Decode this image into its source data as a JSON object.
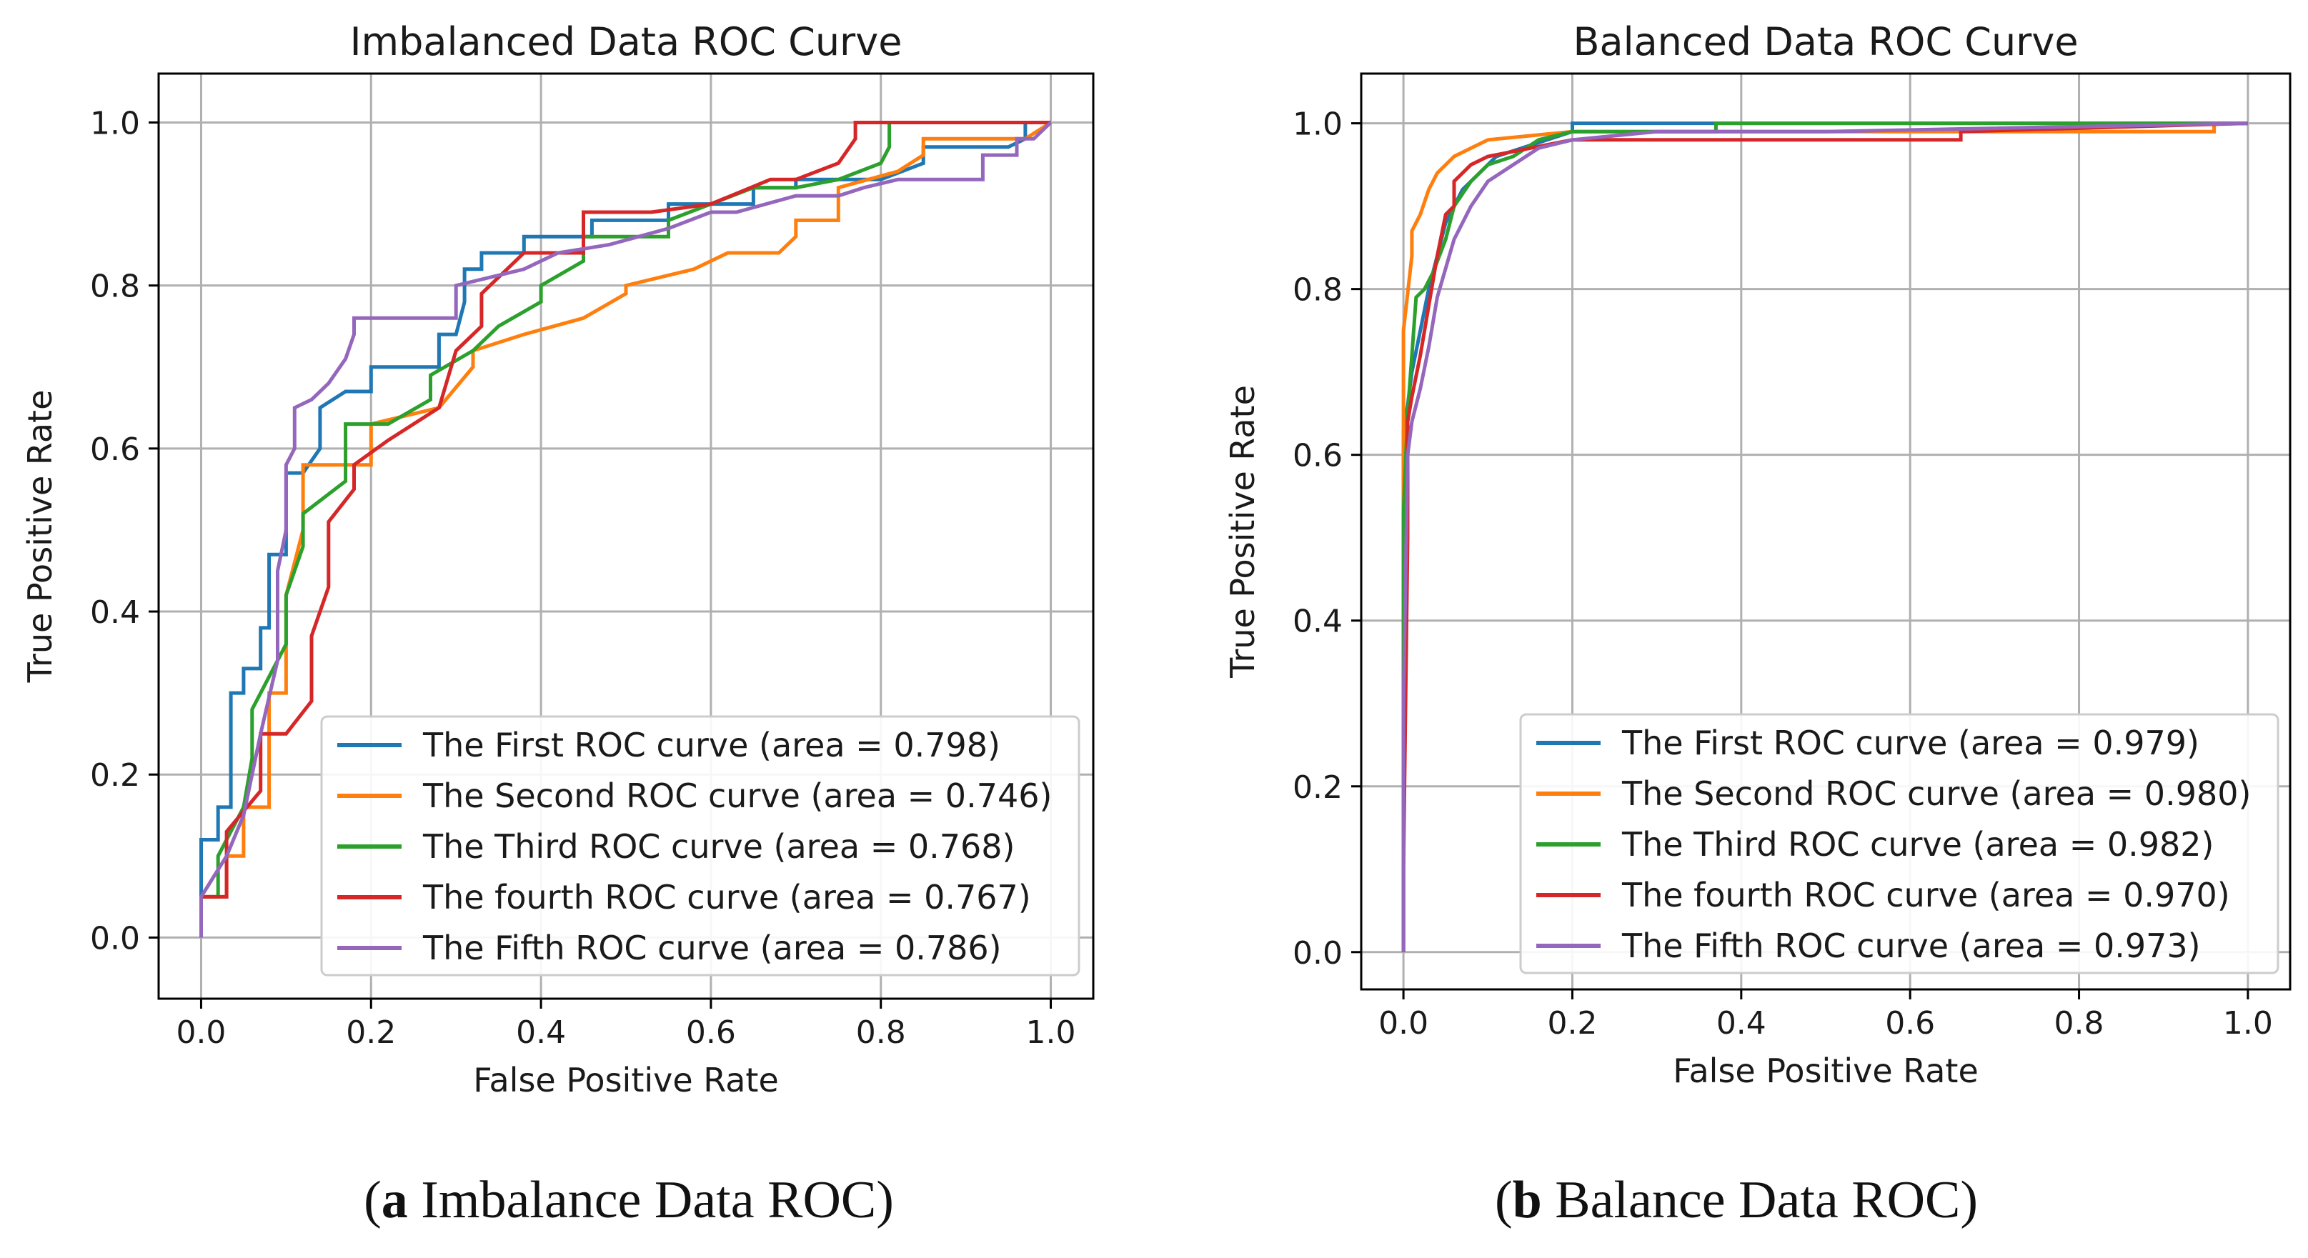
{
  "colors": {
    "series": [
      "#1f77b4",
      "#ff7f0e",
      "#2ca02c",
      "#d62728",
      "#9467bd"
    ],
    "grid": "#b0b0b0",
    "axis": "#000000"
  },
  "captions": [
    {
      "tag": "a",
      "text": " Imbalance Data ROC"
    },
    {
      "tag": "b",
      "text": " Balance Data ROC"
    }
  ],
  "chart_data": [
    {
      "type": "line",
      "title": "Imbalanced Data ROC Curve",
      "xlabel": "False Positive Rate",
      "ylabel": "True Positive Rate",
      "xlim": [
        -0.05,
        1.05
      ],
      "ylim": [
        -0.075,
        1.06
      ],
      "xticks": [
        "0.0",
        "0.2",
        "0.4",
        "0.6",
        "0.8",
        "1.0"
      ],
      "yticks": [
        "0.0",
        "0.2",
        "0.4",
        "0.6",
        "0.8",
        "1.0"
      ],
      "grid": true,
      "legend_position": "lower-right",
      "series": [
        {
          "name": "The First ROC curve (area = 0.798)",
          "x": [
            0.0,
            0.0,
            0.02,
            0.02,
            0.035,
            0.035,
            0.05,
            0.05,
            0.07,
            0.07,
            0.08,
            0.08,
            0.1,
            0.1,
            0.12,
            0.14,
            0.14,
            0.17,
            0.2,
            0.2,
            0.28,
            0.28,
            0.3,
            0.31,
            0.31,
            0.33,
            0.33,
            0.38,
            0.38,
            0.45,
            0.46,
            0.46,
            0.55,
            0.55,
            0.65,
            0.65,
            0.7,
            0.7,
            0.8,
            0.85,
            0.85,
            0.95,
            0.97,
            0.97,
            1.0
          ],
          "y": [
            0.0,
            0.12,
            0.12,
            0.16,
            0.16,
            0.3,
            0.3,
            0.33,
            0.33,
            0.38,
            0.38,
            0.47,
            0.47,
            0.57,
            0.57,
            0.6,
            0.65,
            0.67,
            0.67,
            0.7,
            0.7,
            0.74,
            0.74,
            0.78,
            0.82,
            0.82,
            0.84,
            0.84,
            0.86,
            0.86,
            0.86,
            0.88,
            0.88,
            0.9,
            0.9,
            0.92,
            0.92,
            0.93,
            0.93,
            0.95,
            0.97,
            0.97,
            0.98,
            1.0,
            1.0
          ]
        },
        {
          "name": "The Second ROC curve (area = 0.746)",
          "x": [
            0.0,
            0.0,
            0.03,
            0.03,
            0.05,
            0.05,
            0.08,
            0.08,
            0.1,
            0.1,
            0.12,
            0.12,
            0.2,
            0.2,
            0.28,
            0.32,
            0.32,
            0.38,
            0.45,
            0.5,
            0.5,
            0.58,
            0.62,
            0.68,
            0.7,
            0.7,
            0.75,
            0.75,
            0.82,
            0.85,
            0.85,
            0.88,
            0.88,
            0.97,
            1.0
          ],
          "y": [
            0.0,
            0.05,
            0.05,
            0.1,
            0.1,
            0.16,
            0.16,
            0.3,
            0.3,
            0.42,
            0.5,
            0.58,
            0.58,
            0.63,
            0.65,
            0.7,
            0.72,
            0.74,
            0.76,
            0.79,
            0.8,
            0.82,
            0.84,
            0.84,
            0.86,
            0.88,
            0.88,
            0.92,
            0.94,
            0.96,
            0.98,
            0.98,
            0.98,
            0.98,
            1.0
          ]
        },
        {
          "name": "The Third ROC curve (area = 0.768)",
          "x": [
            0.0,
            0.0,
            0.02,
            0.02,
            0.05,
            0.06,
            0.06,
            0.08,
            0.1,
            0.1,
            0.12,
            0.12,
            0.17,
            0.17,
            0.22,
            0.27,
            0.27,
            0.32,
            0.35,
            0.4,
            0.4,
            0.45,
            0.45,
            0.55,
            0.55,
            0.6,
            0.65,
            0.7,
            0.75,
            0.8,
            0.81,
            0.81,
            0.85,
            0.85,
            0.97,
            1.0
          ],
          "y": [
            0.0,
            0.05,
            0.05,
            0.1,
            0.16,
            0.22,
            0.28,
            0.32,
            0.36,
            0.42,
            0.48,
            0.52,
            0.56,
            0.63,
            0.63,
            0.66,
            0.69,
            0.72,
            0.75,
            0.78,
            0.8,
            0.83,
            0.86,
            0.86,
            0.88,
            0.9,
            0.92,
            0.92,
            0.93,
            0.95,
            0.97,
            1.0,
            1.0,
            1.0,
            1.0,
            1.0
          ]
        },
        {
          "name": "The fourth ROC curve (area = 0.767)",
          "x": [
            0.0,
            0.0,
            0.03,
            0.03,
            0.07,
            0.07,
            0.1,
            0.13,
            0.13,
            0.15,
            0.15,
            0.18,
            0.18,
            0.22,
            0.25,
            0.28,
            0.3,
            0.33,
            0.33,
            0.38,
            0.45,
            0.45,
            0.53,
            0.6,
            0.67,
            0.7,
            0.75,
            0.77,
            0.77,
            0.86,
            0.86,
            1.0
          ],
          "y": [
            0.0,
            0.05,
            0.05,
            0.13,
            0.18,
            0.25,
            0.25,
            0.29,
            0.37,
            0.43,
            0.51,
            0.55,
            0.58,
            0.61,
            0.63,
            0.65,
            0.72,
            0.75,
            0.79,
            0.84,
            0.84,
            0.89,
            0.89,
            0.9,
            0.93,
            0.93,
            0.95,
            0.98,
            1.0,
            1.0,
            1.0,
            1.0
          ]
        },
        {
          "name": "The Fifth ROC curve (area = 0.786)",
          "x": [
            0.0,
            0.0,
            0.03,
            0.05,
            0.07,
            0.09,
            0.09,
            0.1,
            0.1,
            0.11,
            0.11,
            0.13,
            0.15,
            0.17,
            0.18,
            0.18,
            0.25,
            0.3,
            0.3,
            0.38,
            0.42,
            0.48,
            0.55,
            0.6,
            0.63,
            0.7,
            0.75,
            0.78,
            0.82,
            0.88,
            0.92,
            0.92,
            0.96,
            0.96,
            0.98,
            1.0
          ],
          "y": [
            0.0,
            0.05,
            0.1,
            0.15,
            0.25,
            0.34,
            0.45,
            0.5,
            0.58,
            0.6,
            0.65,
            0.66,
            0.68,
            0.71,
            0.74,
            0.76,
            0.76,
            0.76,
            0.8,
            0.82,
            0.84,
            0.85,
            0.87,
            0.89,
            0.89,
            0.91,
            0.91,
            0.92,
            0.93,
            0.93,
            0.93,
            0.96,
            0.96,
            0.98,
            0.98,
            1.0
          ]
        }
      ]
    },
    {
      "type": "line",
      "title": "Balanced Data ROC Curve",
      "xlabel": "False Positive Rate",
      "ylabel": "True Positive Rate",
      "xlim": [
        -0.05,
        1.05
      ],
      "ylim": [
        -0.045,
        1.06
      ],
      "xticks": [
        "0.0",
        "0.2",
        "0.4",
        "0.6",
        "0.8",
        "1.0"
      ],
      "yticks": [
        "0.0",
        "0.2",
        "0.4",
        "0.6",
        "0.8",
        "1.0"
      ],
      "grid": true,
      "legend_position": "lower-right",
      "series": [
        {
          "name": "The First ROC curve (area = 0.979)",
          "x": [
            0.0,
            0.0,
            0.005,
            0.01,
            0.02,
            0.03,
            0.04,
            0.05,
            0.07,
            0.09,
            0.11,
            0.14,
            0.17,
            0.2,
            0.2,
            1.0
          ],
          "y": [
            0.0,
            0.63,
            0.66,
            0.7,
            0.75,
            0.8,
            0.84,
            0.88,
            0.92,
            0.94,
            0.96,
            0.97,
            0.98,
            0.99,
            1.0,
            1.0
          ]
        },
        {
          "name": "The Second ROC curve (area = 0.980)",
          "x": [
            0.0,
            0.0,
            0.01,
            0.01,
            0.02,
            0.03,
            0.04,
            0.05,
            0.06,
            0.08,
            0.1,
            0.15,
            0.2,
            0.3,
            0.5,
            0.96,
            0.96,
            1.0
          ],
          "y": [
            0.0,
            0.75,
            0.84,
            0.87,
            0.89,
            0.92,
            0.94,
            0.95,
            0.96,
            0.97,
            0.98,
            0.985,
            0.99,
            0.99,
            0.99,
            0.99,
            1.0,
            1.0
          ]
        },
        {
          "name": "The Third ROC curve (area = 0.982)",
          "x": [
            0.0,
            0.0,
            0.005,
            0.015,
            0.025,
            0.035,
            0.05,
            0.06,
            0.08,
            0.1,
            0.13,
            0.16,
            0.2,
            0.37,
            0.37,
            1.0
          ],
          "y": [
            0.0,
            0.53,
            0.65,
            0.79,
            0.8,
            0.82,
            0.86,
            0.9,
            0.93,
            0.95,
            0.96,
            0.98,
            0.99,
            0.99,
            1.0,
            1.0
          ]
        },
        {
          "name": "The fourth ROC curve (area = 0.970)",
          "x": [
            0.0,
            0.0,
            0.005,
            0.005,
            0.01,
            0.02,
            0.03,
            0.04,
            0.05,
            0.06,
            0.06,
            0.08,
            0.1,
            0.15,
            0.2,
            0.27,
            0.66,
            0.66,
            1.0
          ],
          "y": [
            0.0,
            0.1,
            0.5,
            0.64,
            0.67,
            0.72,
            0.78,
            0.84,
            0.89,
            0.9,
            0.93,
            0.95,
            0.96,
            0.97,
            0.98,
            0.98,
            0.98,
            0.99,
            1.0
          ]
        },
        {
          "name": "The Fifth ROC curve (area = 0.973)",
          "x": [
            0.0,
            0.0,
            0.005,
            0.01,
            0.02,
            0.03,
            0.04,
            0.06,
            0.08,
            0.1,
            0.13,
            0.16,
            0.2,
            0.3,
            0.5,
            1.0
          ],
          "y": [
            0.0,
            0.3,
            0.6,
            0.64,
            0.68,
            0.73,
            0.79,
            0.86,
            0.9,
            0.93,
            0.95,
            0.97,
            0.98,
            0.99,
            0.99,
            1.0
          ]
        }
      ]
    }
  ]
}
